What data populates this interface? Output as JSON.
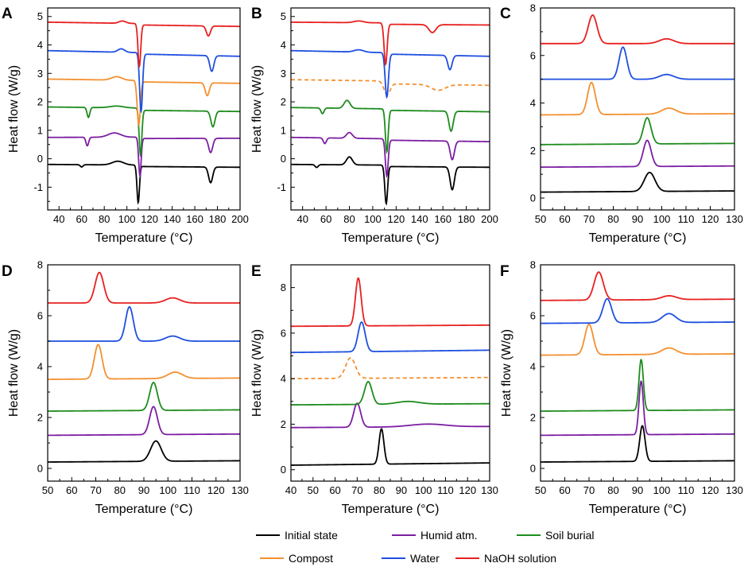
{
  "legend": [
    {
      "name": "Initial state",
      "color": "#000000"
    },
    {
      "name": "Humid atm.",
      "color": "#7b1fa2"
    },
    {
      "name": "Soil burial",
      "color": "#1e8c1e"
    },
    {
      "name": "Compost",
      "color": "#f39030"
    },
    {
      "name": "Water",
      "color": "#1f4fe0"
    },
    {
      "name": "NaOH solution",
      "color": "#e82020"
    }
  ],
  "chart_data": [
    {
      "panel": "A",
      "type": "line",
      "xlabel": "Temperature (°C)",
      "ylabel": "Heat flow (W/g)",
      "xlim": [
        30,
        200
      ],
      "ylim": [
        -1.8,
        5.3
      ],
      "xticks": [
        40,
        60,
        80,
        100,
        120,
        140,
        160,
        180,
        200
      ],
      "yticks": [
        -1,
        0,
        1,
        2,
        3,
        4,
        5
      ],
      "series": [
        {
          "name": "Initial state",
          "base": -0.2,
          "drift": -0.05,
          "peaks": [
            {
              "c": 60,
              "w": 1.2,
              "h": -0.08
            },
            {
              "c": 92,
              "w": 5,
              "h": 0.13
            },
            {
              "c": 110,
              "w": 1.1,
              "h": -1.32
            },
            {
              "c": 174,
              "w": 1.8,
              "h": -0.55
            }
          ],
          "steps": [
            {
              "at": 112,
              "d": -0.05
            }
          ]
        },
        {
          "name": "Humid atm.",
          "base": 0.75,
          "drift": 0.02,
          "peaks": [
            {
              "c": 65,
              "w": 1.2,
              "h": -0.3
            },
            {
              "c": 89,
              "w": 5.5,
              "h": 0.15
            },
            {
              "c": 111.5,
              "w": 1.1,
              "h": -1.35
            },
            {
              "c": 174,
              "w": 1.8,
              "h": -0.5
            }
          ],
          "steps": [
            {
              "at": 113,
              "d": -0.05
            }
          ]
        },
        {
          "name": "Soil burial",
          "base": 1.82,
          "drift": -0.08,
          "peaks": [
            {
              "c": 66,
              "w": 1.2,
              "h": -0.35
            },
            {
              "c": 91,
              "w": 6,
              "h": 0.06
            },
            {
              "c": 112,
              "w": 1.2,
              "h": -1.62
            },
            {
              "c": 176,
              "w": 1.8,
              "h": -0.55
            }
          ],
          "steps": [
            {
              "at": 113,
              "d": -0.08
            }
          ]
        },
        {
          "name": "Compost",
          "base": 2.8,
          "drift": -0.1,
          "peaks": [
            {
              "c": 91,
              "w": 4.5,
              "h": 0.12
            },
            {
              "c": 110.5,
              "w": 1.4,
              "h": -1.55
            },
            {
              "c": 171,
              "w": 1.8,
              "h": -0.45
            }
          ],
          "steps": [
            {
              "at": 112,
              "d": -0.05
            }
          ]
        },
        {
          "name": "Water",
          "base": 3.8,
          "drift": -0.15,
          "peaks": [
            {
              "c": 95,
              "w": 3,
              "h": 0.12
            },
            {
              "c": 112.5,
              "w": 1.3,
              "h": -2.05
            },
            {
              "c": 175,
              "w": 1.8,
              "h": -0.55
            }
          ],
          "steps": [
            {
              "at": 113,
              "d": -0.05
            }
          ]
        },
        {
          "name": "NaOH solution",
          "base": 4.8,
          "drift": -0.1,
          "peaks": [
            {
              "c": 96,
              "w": 3,
              "h": 0.08
            },
            {
              "c": 111,
              "w": 1.2,
              "h": -1.5
            },
            {
              "c": 172,
              "w": 1.8,
              "h": -0.35
            }
          ],
          "steps": [
            {
              "at": 112,
              "d": -0.05
            }
          ]
        }
      ]
    },
    {
      "panel": "B",
      "type": "line",
      "xlabel": "Temperature (°C)",
      "ylabel": "Heat flow (W/g)",
      "xlim": [
        30,
        200
      ],
      "ylim": [
        -1.8,
        5.3
      ],
      "xticks": [
        40,
        60,
        80,
        100,
        120,
        140,
        160,
        180,
        200
      ],
      "yticks": [
        -1,
        0,
        1,
        2,
        3,
        4,
        5
      ],
      "series": [
        {
          "name": "Initial state",
          "base": -0.2,
          "drift": -0.05,
          "peaks": [
            {
              "c": 52,
              "w": 1.3,
              "h": -0.1
            },
            {
              "c": 80,
              "w": 2.5,
              "h": 0.28
            },
            {
              "c": 111.5,
              "w": 1.2,
              "h": -1.35
            },
            {
              "c": 168,
              "w": 1.8,
              "h": -0.8
            }
          ],
          "steps": [
            {
              "at": 113,
              "d": -0.05
            }
          ]
        },
        {
          "name": "Humid atm.",
          "base": 0.75,
          "drift": -0.1,
          "peaks": [
            {
              "c": 59,
              "w": 1.3,
              "h": -0.2
            },
            {
              "c": 80,
              "w": 2.5,
              "h": 0.2
            },
            {
              "c": 112,
              "w": 1.2,
              "h": -1.3
            },
            {
              "c": 168,
              "w": 1.8,
              "h": -0.65
            }
          ],
          "steps": [
            {
              "at": 113,
              "d": -0.05
            }
          ]
        },
        {
          "name": "Soil burial",
          "base": 1.8,
          "drift": -0.1,
          "peaks": [
            {
              "c": 57,
              "w": 1.3,
              "h": -0.2
            },
            {
              "c": 78,
              "w": 2.5,
              "h": 0.28
            },
            {
              "c": 112,
              "w": 1.2,
              "h": -1.5
            },
            {
              "c": 167,
              "w": 1.8,
              "h": -0.7
            }
          ],
          "steps": [
            {
              "at": 113,
              "d": -0.05
            }
          ]
        },
        {
          "name": "Compost",
          "base": 2.78,
          "drift": -0.1,
          "dashed": true,
          "peaks": [
            {
              "c": 112,
              "w": 2.5,
              "h": -0.45
            },
            {
              "c": 156,
              "w": 6,
              "h": -0.2
            }
          ],
          "steps": [
            {
              "at": 113,
              "d": -0.1
            }
          ]
        },
        {
          "name": "Water",
          "base": 3.8,
          "drift": -0.15,
          "peaks": [
            {
              "c": 88,
              "w": 4,
              "h": 0.08
            },
            {
              "c": 112,
              "w": 1.4,
              "h": -1.55
            },
            {
              "c": 166,
              "w": 1.8,
              "h": -0.5
            }
          ],
          "steps": [
            {
              "at": 113,
              "d": -0.05
            }
          ]
        },
        {
          "name": "NaOH solution",
          "base": 4.8,
          "drift": -0.05,
          "peaks": [
            {
              "c": 88,
              "w": 4,
              "h": 0.06
            },
            {
              "c": 111,
              "w": 1.3,
              "h": -1.45
            },
            {
              "c": 151,
              "w": 3,
              "h": -0.28
            }
          ],
          "steps": [
            {
              "at": 112,
              "d": -0.05
            }
          ]
        }
      ]
    },
    {
      "panel": "C",
      "type": "line",
      "xlabel": "Temperature (°C)",
      "ylabel": "",
      "xlim": [
        50,
        130
      ],
      "ylim": [
        -0.5,
        8
      ],
      "xticks": [
        50,
        60,
        70,
        80,
        90,
        100,
        110,
        120,
        130
      ],
      "yticks": [
        0,
        2,
        4,
        6,
        8
      ],
      "series": [
        {
          "name": "Initial state",
          "base": 0.25,
          "drift": 0.05,
          "peaks": [
            {
              "c": 95,
              "w": 2.2,
              "h": 0.8
            }
          ],
          "steps": []
        },
        {
          "name": "Humid atm.",
          "base": 1.3,
          "drift": 0.05,
          "peaks": [
            {
              "c": 94,
              "w": 1.6,
              "h": 1.1
            }
          ],
          "steps": []
        },
        {
          "name": "Soil burial",
          "base": 2.25,
          "drift": 0.05,
          "peaks": [
            {
              "c": 94,
              "w": 1.6,
              "h": 1.1
            }
          ],
          "steps": []
        },
        {
          "name": "Compost",
          "base": 3.5,
          "drift": 0.05,
          "peaks": [
            {
              "c": 71,
              "w": 1.6,
              "h": 1.35
            },
            {
              "c": 103,
              "w": 3,
              "h": 0.25
            }
          ],
          "steps": []
        },
        {
          "name": "Water",
          "base": 5.0,
          "drift": 0.0,
          "peaks": [
            {
              "c": 84,
              "w": 1.6,
              "h": 1.35
            },
            {
              "c": 102,
              "w": 3,
              "h": 0.2
            }
          ],
          "steps": []
        },
        {
          "name": "NaOH solution",
          "base": 6.5,
          "drift": 0.0,
          "peaks": [
            {
              "c": 71.5,
              "w": 1.8,
              "h": 1.2
            },
            {
              "c": 102,
              "w": 3,
              "h": 0.2
            }
          ],
          "steps": []
        }
      ]
    },
    {
      "panel": "D",
      "type": "line",
      "xlabel": "Temperature (°C)",
      "ylabel": "Heat flow (W/g)",
      "xlim": [
        50,
        130
      ],
      "ylim": [
        -0.5,
        8
      ],
      "xticks": [
        50,
        60,
        70,
        80,
        90,
        100,
        110,
        120,
        130
      ],
      "yticks": [
        0,
        2,
        4,
        6,
        8
      ],
      "series": [
        {
          "name": "Initial state",
          "base": 0.25,
          "drift": 0.05,
          "peaks": [
            {
              "c": 95,
              "w": 2.2,
              "h": 0.8
            }
          ],
          "steps": []
        },
        {
          "name": "Humid atm.",
          "base": 1.3,
          "drift": 0.05,
          "peaks": [
            {
              "c": 94,
              "w": 1.6,
              "h": 1.1
            }
          ],
          "steps": []
        },
        {
          "name": "Soil burial",
          "base": 2.25,
          "drift": 0.05,
          "peaks": [
            {
              "c": 94,
              "w": 1.6,
              "h": 1.1
            }
          ],
          "steps": []
        },
        {
          "name": "Compost",
          "base": 3.5,
          "drift": 0.05,
          "peaks": [
            {
              "c": 71,
              "w": 1.6,
              "h": 1.35
            },
            {
              "c": 103,
              "w": 3,
              "h": 0.25
            }
          ],
          "steps": []
        },
        {
          "name": "Water",
          "base": 5.0,
          "drift": 0.0,
          "peaks": [
            {
              "c": 84,
              "w": 1.6,
              "h": 1.35
            },
            {
              "c": 102,
              "w": 3,
              "h": 0.2
            }
          ],
          "steps": []
        },
        {
          "name": "NaOH solution",
          "base": 6.5,
          "drift": 0.0,
          "peaks": [
            {
              "c": 71.5,
              "w": 1.8,
              "h": 1.2
            },
            {
              "c": 102,
              "w": 3,
              "h": 0.2
            }
          ],
          "steps": []
        }
      ]
    },
    {
      "panel": "E",
      "type": "line",
      "xlabel": "Temperature (°C)",
      "ylabel": "Heat flow (W/g)",
      "xlim": [
        40,
        130
      ],
      "ylim": [
        -0.5,
        9
      ],
      "xticks": [
        40,
        50,
        60,
        70,
        80,
        90,
        100,
        110,
        120,
        130
      ],
      "yticks": [
        0,
        2,
        4,
        6,
        8
      ],
      "series": [
        {
          "name": "Initial state",
          "base": 0.2,
          "drift": 0.1,
          "peaks": [
            {
              "c": 81,
              "w": 1.1,
              "h": 1.55
            }
          ],
          "steps": []
        },
        {
          "name": "Humid atm.",
          "base": 1.85,
          "drift": 0.05,
          "peaks": [
            {
              "c": 70,
              "w": 1.6,
              "h": 1.05
            },
            {
              "c": 102,
              "w": 8,
              "h": 0.12
            }
          ],
          "steps": []
        },
        {
          "name": "Soil burial",
          "base": 2.85,
          "drift": 0.05,
          "peaks": [
            {
              "c": 75,
              "w": 1.7,
              "h": 1.0
            },
            {
              "c": 93,
              "w": 5,
              "h": 0.12
            }
          ],
          "steps": []
        },
        {
          "name": "Compost",
          "base": 4.0,
          "drift": 0.05,
          "dashed": true,
          "peaks": [
            {
              "c": 67,
              "w": 2.2,
              "h": 0.9
            }
          ],
          "steps": []
        },
        {
          "name": "Water",
          "base": 5.15,
          "drift": 0.1,
          "peaks": [
            {
              "c": 72,
              "w": 1.6,
              "h": 1.3
            }
          ],
          "steps": []
        },
        {
          "name": "NaOH solution",
          "base": 6.3,
          "drift": 0.05,
          "peaks": [
            {
              "c": 70.5,
              "w": 1.3,
              "h": 2.1
            }
          ],
          "steps": []
        }
      ]
    },
    {
      "panel": "F",
      "type": "line",
      "xlabel": "Temperature (°C)",
      "ylabel": "Heat flow (W/g)",
      "xlim": [
        50,
        130
      ],
      "ylim": [
        -0.5,
        8
      ],
      "xticks": [
        50,
        60,
        70,
        80,
        90,
        100,
        110,
        120,
        130
      ],
      "yticks": [
        0,
        2,
        4,
        6,
        8
      ],
      "series": [
        {
          "name": "Initial state",
          "base": 0.25,
          "drift": 0.05,
          "peaks": [
            {
              "c": 92,
              "w": 1.1,
              "h": 1.4
            }
          ],
          "steps": []
        },
        {
          "name": "Humid atm.",
          "base": 1.3,
          "drift": 0.05,
          "peaks": [
            {
              "c": 91.5,
              "w": 0.9,
              "h": 2.1
            }
          ],
          "steps": []
        },
        {
          "name": "Soil burial",
          "base": 2.25,
          "drift": 0.05,
          "peaks": [
            {
              "c": 91.5,
              "w": 0.9,
              "h": 2.0
            }
          ],
          "steps": []
        },
        {
          "name": "Compost",
          "base": 4.45,
          "drift": 0.05,
          "peaks": [
            {
              "c": 70,
              "w": 1.7,
              "h": 1.2
            },
            {
              "c": 103,
              "w": 3,
              "h": 0.25
            }
          ],
          "steps": []
        },
        {
          "name": "Water",
          "base": 5.7,
          "drift": 0.05,
          "peaks": [
            {
              "c": 77.5,
              "w": 1.8,
              "h": 0.95
            },
            {
              "c": 103,
              "w": 2.8,
              "h": 0.35
            }
          ],
          "steps": []
        },
        {
          "name": "NaOH solution",
          "base": 6.6,
          "drift": 0.05,
          "peaks": [
            {
              "c": 74,
              "w": 1.9,
              "h": 1.1
            },
            {
              "c": 103,
              "w": 3,
              "h": 0.15
            }
          ],
          "steps": []
        }
      ]
    }
  ]
}
